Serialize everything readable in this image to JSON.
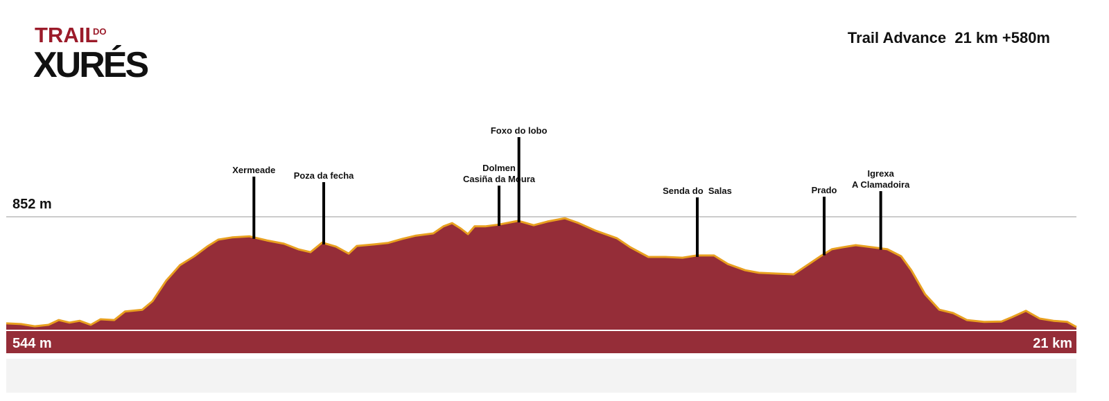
{
  "logo": {
    "trail": "TRAIL",
    "do": "DO",
    "xures": "XURÉS"
  },
  "chart_data": {
    "type": "area",
    "title": "Trail Advance  21 km +580m",
    "x": [
      0.0,
      0.29,
      0.56,
      0.83,
      1.03,
      1.24,
      1.44,
      1.66,
      1.85,
      2.12,
      2.33,
      2.67,
      2.87,
      3.14,
      3.41,
      3.69,
      3.96,
      4.16,
      4.43,
      4.77,
      5.11,
      5.45,
      5.73,
      5.97,
      6.2,
      6.47,
      6.72,
      6.88,
      7.22,
      7.49,
      7.77,
      8.04,
      8.38,
      8.58,
      8.75,
      8.92,
      9.06,
      9.19,
      9.4,
      9.67,
      10.05,
      10.35,
      10.62,
      10.96,
      11.23,
      11.57,
      11.98,
      12.25,
      12.6,
      12.93,
      13.27,
      13.55,
      13.89,
      14.16,
      14.5,
      14.77,
      15.11,
      15.45,
      15.72,
      16.0,
      16.2,
      16.4,
      16.67,
      17.02,
      17.29,
      17.56,
      17.76,
      18.03,
      18.31,
      18.58,
      18.85,
      19.19,
      19.53,
      19.74,
      20.01,
      20.28,
      20.55,
      20.82,
      21.0
    ],
    "values": [
      563,
      561,
      555,
      559,
      572,
      565,
      570,
      559,
      574,
      572,
      595,
      600,
      623,
      679,
      721,
      745,
      773,
      790,
      796,
      799,
      788,
      779,
      764,
      756,
      782,
      771,
      752,
      773,
      777,
      781,
      792,
      801,
      807,
      826,
      835,
      820,
      805,
      826,
      826,
      831,
      841,
      829,
      839,
      848,
      835,
      814,
      794,
      769,
      743,
      743,
      741,
      747,
      747,
      724,
      707,
      700,
      698,
      696,
      721,
      747,
      764,
      769,
      775,
      769,
      764,
      745,
      707,
      642,
      600,
      591,
      572,
      567,
      568,
      580,
      597,
      576,
      570,
      567,
      553
    ],
    "color": "#952d38",
    "line_color": "#e8a020",
    "xlim": [
      0,
      21
    ],
    "xticks": [
      {
        "value": 21,
        "label": "21 km"
      }
    ],
    "ylim": [
      544,
      852
    ],
    "yticks": [
      {
        "value": 544,
        "label": "544 m"
      },
      {
        "value": 852,
        "label": "852 m"
      }
    ],
    "annotations": [
      {
        "x": 4.86,
        "label": [
          "Xermeade"
        ]
      },
      {
        "x": 6.23,
        "label": [
          "Poza da fecha"
        ]
      },
      {
        "x": 9.67,
        "label": [
          "Dolmen",
          "Casiña da Moura"
        ]
      },
      {
        "x": 10.06,
        "label": [
          "Foxo do lobo"
        ]
      },
      {
        "x": 13.56,
        "label": [
          "Senda do  Salas"
        ]
      },
      {
        "x": 16.05,
        "label": [
          "Prado"
        ]
      },
      {
        "x": 17.16,
        "label": [
          "Igrexa",
          "A Clamadoira"
        ]
      }
    ]
  }
}
